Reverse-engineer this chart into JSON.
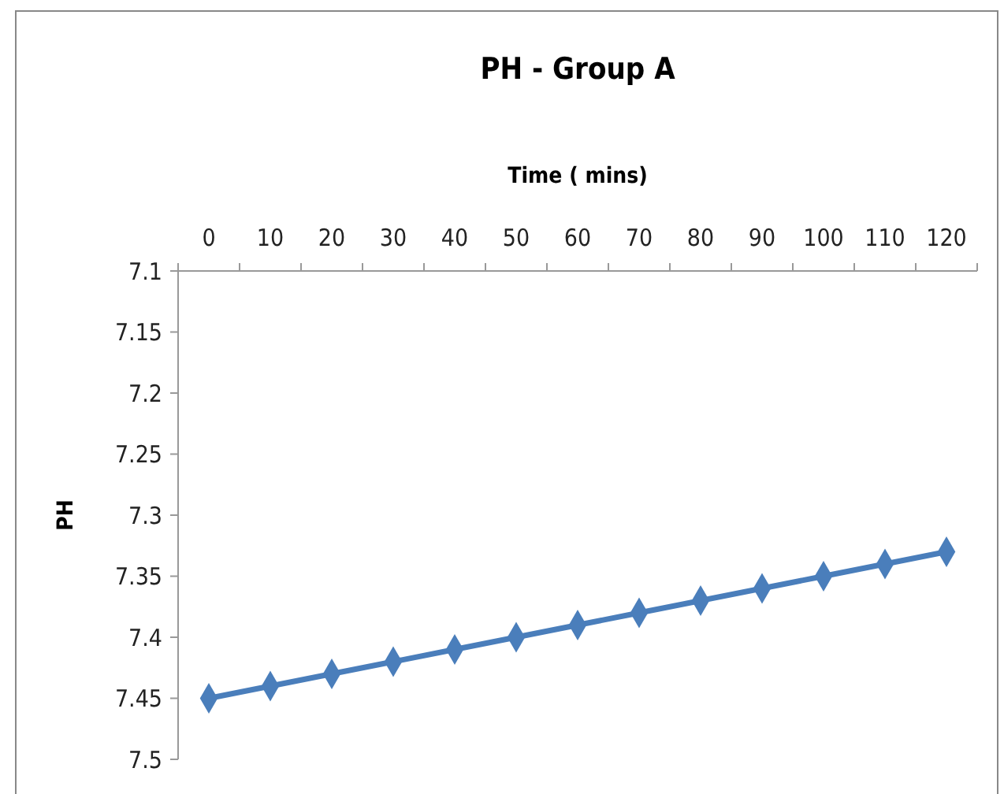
{
  "chart_data": {
    "type": "line",
    "title": "PH - Group A",
    "xlabel": "Time ( mins)",
    "ylabel": "PH",
    "categories": [
      "0",
      "10",
      "20",
      "30",
      "40",
      "50",
      "60",
      "70",
      "80",
      "90",
      "100",
      "110",
      "120"
    ],
    "series": [
      {
        "color": "#4a7ebb",
        "values": [
          7.45,
          7.44,
          7.43,
          7.42,
          7.41,
          7.4,
          7.39,
          7.38,
          7.37,
          7.36,
          7.35,
          7.34,
          7.33
        ]
      }
    ],
    "ylim": [
      7.5,
      7.1
    ],
    "yticks": [
      7.1,
      7.15,
      7.2,
      7.25,
      7.3,
      7.35,
      7.4,
      7.45,
      7.5
    ],
    "marker": "diamond",
    "grid": false
  }
}
